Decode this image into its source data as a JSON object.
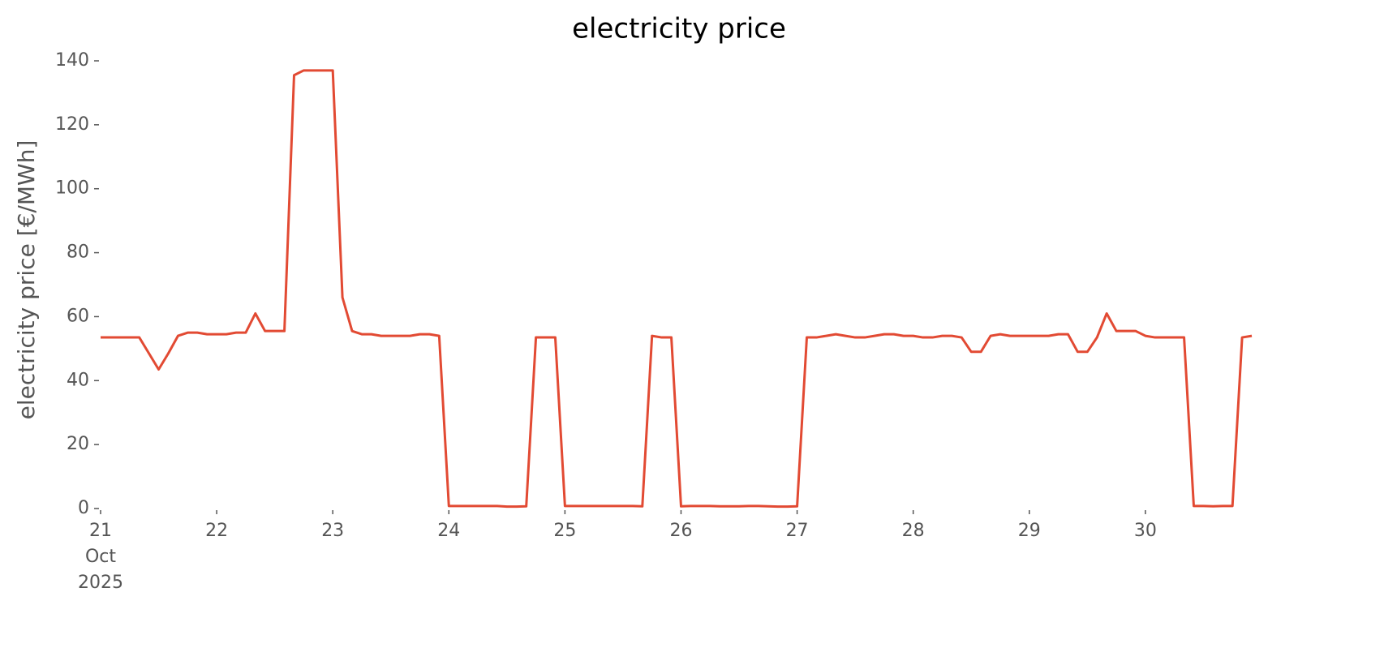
{
  "chart_data": {
    "type": "line",
    "title": "electricity price",
    "ylabel": "electricity price [€/MWh]",
    "x": [
      "2025-10-21 00:00",
      "2025-10-21 02:00",
      "2025-10-21 04:00",
      "2025-10-21 06:00",
      "2025-10-21 08:00",
      "2025-10-21 10:00",
      "2025-10-21 12:00",
      "2025-10-21 14:00",
      "2025-10-21 16:00",
      "2025-10-21 18:00",
      "2025-10-21 20:00",
      "2025-10-21 22:00",
      "2025-10-22 00:00",
      "2025-10-22 02:00",
      "2025-10-22 04:00",
      "2025-10-22 06:00",
      "2025-10-22 08:00",
      "2025-10-22 10:00",
      "2025-10-22 12:00",
      "2025-10-22 14:00",
      "2025-10-22 16:00",
      "2025-10-22 18:00",
      "2025-10-22 20:00",
      "2025-10-22 22:00",
      "2025-10-23 00:00",
      "2025-10-23 02:00",
      "2025-10-23 04:00",
      "2025-10-23 06:00",
      "2025-10-23 08:00",
      "2025-10-23 10:00",
      "2025-10-23 12:00",
      "2025-10-23 14:00",
      "2025-10-23 16:00",
      "2025-10-23 18:00",
      "2025-10-23 20:00",
      "2025-10-23 22:00",
      "2025-10-24 00:00",
      "2025-10-24 02:00",
      "2025-10-24 04:00",
      "2025-10-24 06:00",
      "2025-10-24 08:00",
      "2025-10-24 10:00",
      "2025-10-24 12:00",
      "2025-10-24 14:00",
      "2025-10-24 16:00",
      "2025-10-24 18:00",
      "2025-10-24 20:00",
      "2025-10-24 22:00",
      "2025-10-25 00:00",
      "2025-10-25 02:00",
      "2025-10-25 04:00",
      "2025-10-25 06:00",
      "2025-10-25 08:00",
      "2025-10-25 10:00",
      "2025-10-25 12:00",
      "2025-10-25 14:00",
      "2025-10-25 16:00",
      "2025-10-25 18:00",
      "2025-10-25 20:00",
      "2025-10-25 22:00",
      "2025-10-26 00:00",
      "2025-10-26 02:00",
      "2025-10-26 04:00",
      "2025-10-26 06:00",
      "2025-10-26 08:00",
      "2025-10-26 10:00",
      "2025-10-26 12:00",
      "2025-10-26 14:00",
      "2025-10-26 16:00",
      "2025-10-26 18:00",
      "2025-10-26 20:00",
      "2025-10-26 22:00",
      "2025-10-27 00:00",
      "2025-10-27 02:00",
      "2025-10-27 04:00",
      "2025-10-27 06:00",
      "2025-10-27 08:00",
      "2025-10-27 10:00",
      "2025-10-27 12:00",
      "2025-10-27 14:00",
      "2025-10-27 16:00",
      "2025-10-27 18:00",
      "2025-10-27 20:00",
      "2025-10-27 22:00",
      "2025-10-28 00:00",
      "2025-10-28 02:00",
      "2025-10-28 04:00",
      "2025-10-28 06:00",
      "2025-10-28 08:00",
      "2025-10-28 10:00",
      "2025-10-28 12:00",
      "2025-10-28 14:00",
      "2025-10-28 16:00",
      "2025-10-28 18:00",
      "2025-10-28 20:00",
      "2025-10-28 22:00",
      "2025-10-29 00:00",
      "2025-10-29 02:00",
      "2025-10-29 04:00",
      "2025-10-29 06:00",
      "2025-10-29 08:00",
      "2025-10-29 10:00",
      "2025-10-29 12:00",
      "2025-10-29 14:00",
      "2025-10-29 16:00",
      "2025-10-29 18:00",
      "2025-10-29 20:00",
      "2025-10-29 22:00",
      "2025-10-30 00:00",
      "2025-10-30 02:00",
      "2025-10-30 04:00",
      "2025-10-30 06:00",
      "2025-10-30 08:00",
      "2025-10-30 10:00",
      "2025-10-30 12:00",
      "2025-10-30 14:00",
      "2025-10-30 16:00",
      "2025-10-30 18:00",
      "2025-10-30 20:00",
      "2025-10-30 22:00"
    ],
    "series": [
      {
        "color": "#e24a33",
        "values": [
          53.5,
          53.5,
          53.5,
          53.5,
          53.5,
          48.5,
          43.5,
          48.5,
          54,
          55,
          55,
          54.5,
          54.5,
          54.5,
          55,
          55,
          61,
          55.5,
          55.5,
          55.5,
          135.5,
          137,
          137,
          137,
          137,
          66,
          55.5,
          54.5,
          54.5,
          54,
          54,
          54,
          54,
          54.5,
          54.5,
          54,
          0.8,
          0.8,
          0.8,
          0.8,
          0.8,
          0.8,
          0.6,
          0.6,
          0.7,
          53.5,
          53.5,
          53.5,
          0.8,
          0.8,
          0.8,
          0.8,
          0.8,
          0.8,
          0.8,
          0.8,
          0.7,
          54,
          53.5,
          53.5,
          0.7,
          0.8,
          0.8,
          0.8,
          0.7,
          0.7,
          0.7,
          0.8,
          0.8,
          0.7,
          0.6,
          0.6,
          0.7,
          53.5,
          53.5,
          54,
          54.5,
          54,
          53.5,
          53.5,
          54,
          54.5,
          54.5,
          54,
          54,
          53.5,
          53.5,
          54,
          54,
          53.5,
          49,
          49,
          54,
          54.5,
          54,
          54,
          54,
          54,
          54,
          54.5,
          54.5,
          49,
          49,
          53.5,
          61,
          55.5,
          55.5,
          55.5,
          54,
          53.5,
          53.5,
          53.5,
          53.5,
          0.8,
          0.8,
          0.7,
          0.8,
          0.8,
          53.5,
          54
        ]
      }
    ],
    "xlim": [
      "2025-10-21 00:00",
      "2025-10-30 23:00"
    ],
    "xticks": [
      {
        "value": "2025-10-21 00:00",
        "label": "21\nOct\n2025"
      },
      {
        "value": "2025-10-22 00:00",
        "label": "22"
      },
      {
        "value": "2025-10-23 00:00",
        "label": "23"
      },
      {
        "value": "2025-10-24 00:00",
        "label": "24"
      },
      {
        "value": "2025-10-25 00:00",
        "label": "25"
      },
      {
        "value": "2025-10-26 00:00",
        "label": "26"
      },
      {
        "value": "2025-10-27 00:00",
        "label": "27"
      },
      {
        "value": "2025-10-28 00:00",
        "label": "28"
      },
      {
        "value": "2025-10-29 00:00",
        "label": "29"
      },
      {
        "value": "2025-10-30 00:00",
        "label": "30"
      }
    ],
    "ylim": [
      0,
      140
    ],
    "yticks": [
      0,
      20,
      40,
      60,
      80,
      100,
      120,
      140
    ],
    "grid": false
  }
}
